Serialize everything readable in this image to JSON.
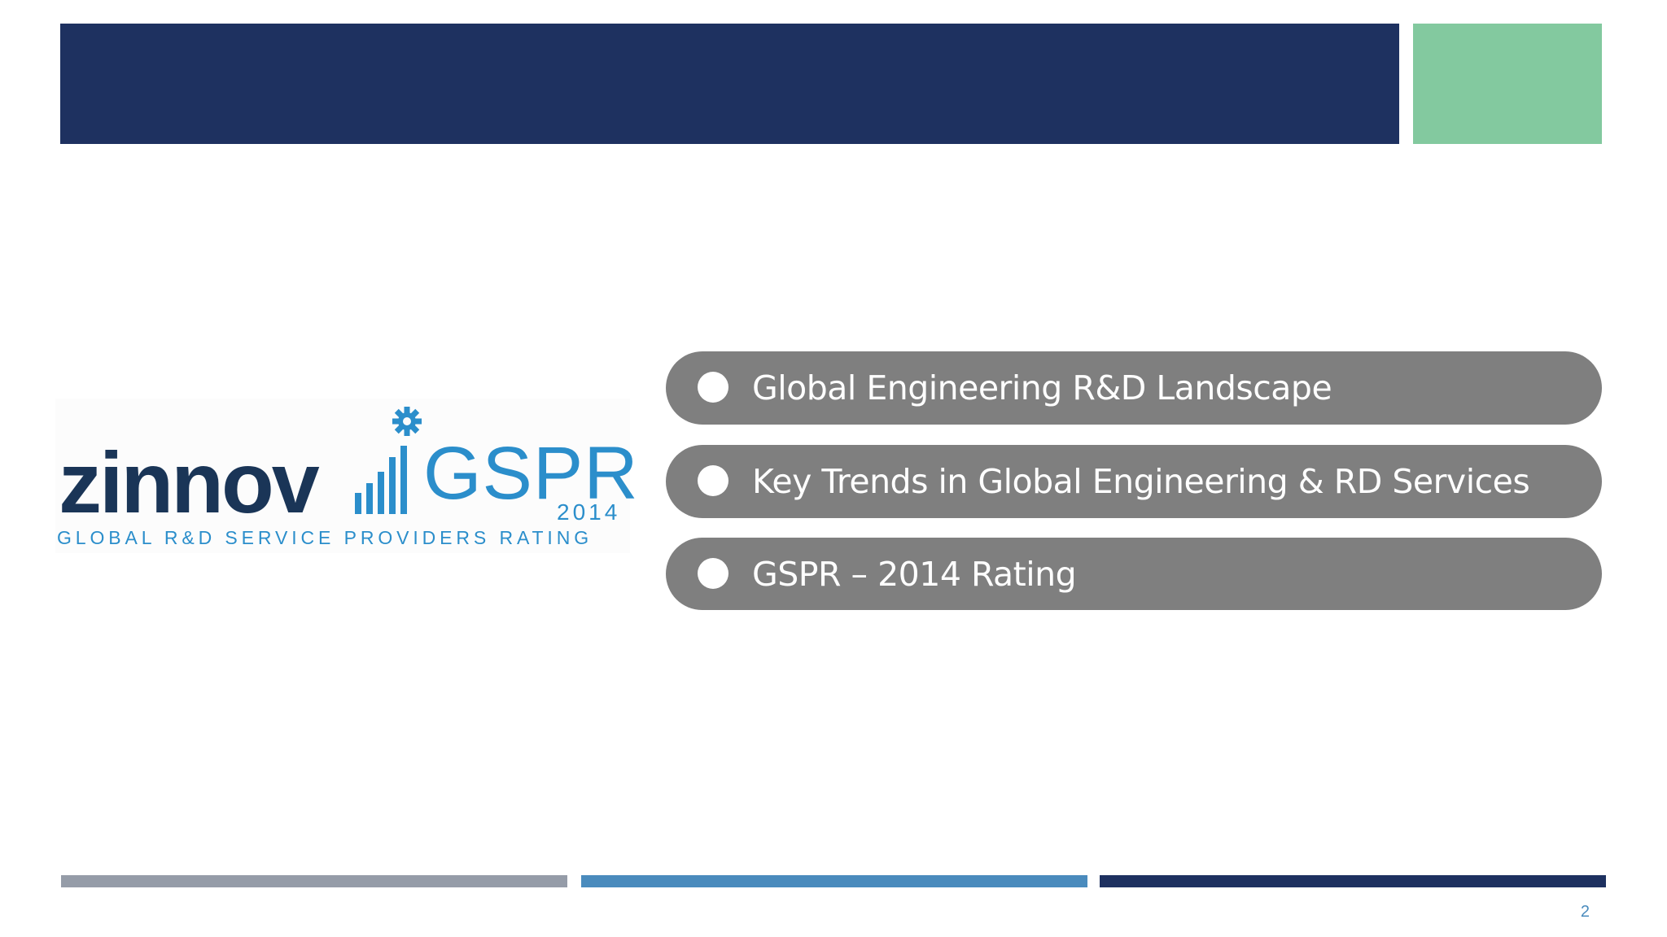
{
  "logo": {
    "brand": "zinnov",
    "title": "GSPR",
    "year": "2014",
    "tagline": "GLOBAL R&D SERVICE PROVIDERS RATING",
    "gear_icon": "gear-icon",
    "bars_icon": "bar-chart-icon"
  },
  "agenda": {
    "items": [
      {
        "label": "Global Engineering R&D Landscape"
      },
      {
        "label": "Key Trends in Global Engineering & RD Services"
      },
      {
        "label": "GSPR – 2014 Rating"
      }
    ]
  },
  "page_number": "2",
  "colors": {
    "navy": "#1e3160",
    "green_accent": "#83c99f",
    "pill_gray": "#7f7f7f",
    "footer_gray": "#959ca8",
    "footer_blue": "#4a8bbd",
    "logo_dark": "#1a3557",
    "logo_blue": "#2b8ecb"
  }
}
